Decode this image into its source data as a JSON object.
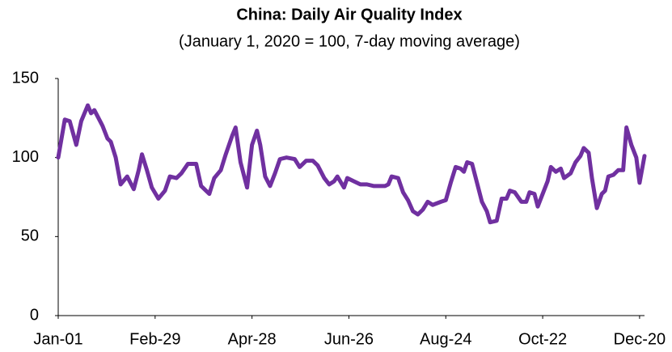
{
  "chart_data": {
    "type": "line",
    "title": "China: Daily Air Quality Index",
    "subtitle": "(January 1, 2020 = 100, 7-day moving average)",
    "x": [
      0,
      4,
      7,
      11,
      14,
      18,
      20,
      22,
      27,
      30,
      32,
      35,
      38,
      42,
      46,
      49,
      51,
      54,
      57,
      61,
      65,
      68,
      72,
      75,
      79,
      84,
      87,
      92,
      95,
      99,
      102,
      106,
      108,
      111,
      115,
      118,
      121,
      123,
      126,
      129,
      132,
      135,
      139,
      144,
      147,
      151,
      155,
      158,
      162,
      165,
      168,
      170,
      174,
      176,
      180,
      184,
      188,
      192,
      196,
      199,
      201,
      203,
      207,
      210,
      213,
      216,
      219,
      222,
      225,
      228,
      233,
      236,
      239,
      242,
      245,
      247,
      249,
      252,
      255,
      258,
      261,
      263,
      267,
      270,
      273,
      275,
      278,
      282,
      285,
      287,
      290,
      292,
      295,
      298,
      300,
      303,
      306,
      308,
      312,
      315,
      318,
      320,
      323,
      325,
      328,
      331,
      333,
      335,
      338,
      341,
      344,
      346,
      349,
      352,
      354,
      357
    ],
    "series": [
      {
        "name": "Daily Air Quality Index",
        "color": "#7030a0",
        "values": [
          100,
          124,
          123,
          108,
          123,
          133,
          128,
          130,
          120,
          112,
          110,
          100,
          83,
          88,
          80,
          92,
          102,
          92,
          81,
          74,
          79,
          88,
          87,
          90,
          96,
          96,
          82,
          77,
          87,
          92,
          102,
          114,
          119,
          97,
          81,
          108,
          117,
          108,
          88,
          82,
          90,
          99,
          100,
          99,
          94,
          98,
          98,
          95,
          87,
          83,
          85,
          88,
          81,
          87,
          85,
          83,
          83,
          82,
          82,
          82,
          83,
          88,
          87,
          78,
          73,
          66,
          64,
          67,
          72,
          70,
          72,
          73,
          84,
          94,
          93,
          91,
          97,
          96,
          84,
          72,
          66,
          59,
          60,
          74,
          74,
          79,
          78,
          72,
          72,
          78,
          77,
          69,
          77,
          85,
          94,
          91,
          93,
          87,
          90,
          97,
          101,
          106,
          103,
          87,
          68,
          77,
          79,
          88,
          89,
          92,
          92,
          119,
          108,
          100,
          84,
          101
        ]
      }
    ],
    "xlim": [
      0,
      357
    ],
    "xticks": [
      {
        "value": 0,
        "label": "Jan-01"
      },
      {
        "value": 59,
        "label": "Feb-29"
      },
      {
        "value": 118,
        "label": "Apr-28"
      },
      {
        "value": 177,
        "label": "Jun-26"
      },
      {
        "value": 236,
        "label": "Aug-24"
      },
      {
        "value": 295,
        "label": "Oct-22"
      },
      {
        "value": 354,
        "label": "Dec-20"
      }
    ],
    "ylim": [
      0,
      150
    ],
    "yticks": [
      0,
      50,
      100,
      150
    ],
    "grid": false
  }
}
